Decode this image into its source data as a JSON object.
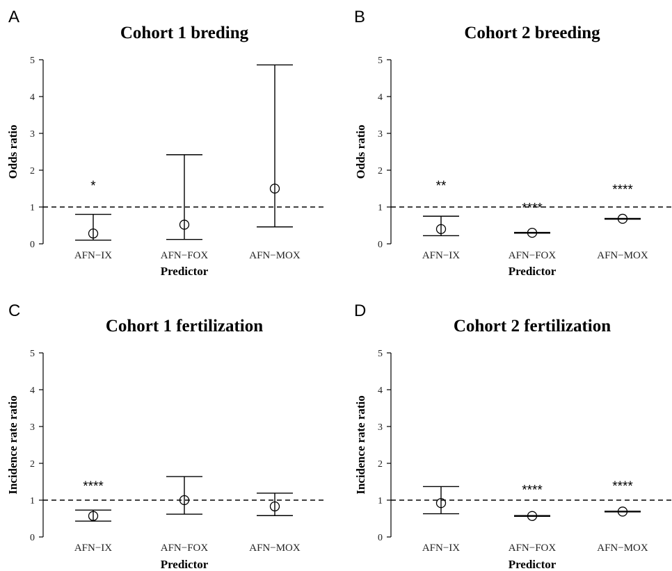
{
  "chart_data": [
    {
      "panel": "A",
      "type": "scatter",
      "title": "Cohort 1 breding",
      "xlabel": "Predictor",
      "ylabel": "Odds ratio",
      "ylim": [
        0,
        5
      ],
      "yticks": [
        "0",
        "1",
        "2",
        "3",
        "4",
        "5"
      ],
      "reference_line": 1,
      "categories": [
        "AFN−IX",
        "AFN−FOX",
        "AFN−MOX"
      ],
      "values": [
        0.28,
        0.52,
        1.5
      ],
      "lower": [
        0.1,
        0.12,
        0.46
      ],
      "upper": [
        0.8,
        2.42,
        4.86
      ],
      "significance": [
        "*",
        "",
        ""
      ],
      "sig_y": [
        1.65,
        0,
        0
      ]
    },
    {
      "panel": "B",
      "type": "scatter",
      "title": "Cohort 2 breeding",
      "xlabel": "Predictor",
      "ylabel": "Odds ratio",
      "ylim": [
        0,
        5
      ],
      "yticks": [
        "0",
        "1",
        "2",
        "3",
        "4",
        "5"
      ],
      "reference_line": 1,
      "categories": [
        "AFN−IX",
        "AFN−FOX",
        "AFN−MOX"
      ],
      "values": [
        0.4,
        0.3,
        0.68
      ],
      "lower": [
        0.22,
        0.29,
        0.67
      ],
      "upper": [
        0.75,
        0.31,
        0.69
      ],
      "significance": [
        "**",
        "****",
        "****"
      ],
      "sig_y": [
        1.65,
        1.05,
        1.55
      ]
    },
    {
      "panel": "C",
      "type": "scatter",
      "title": "Cohort 1 fertilization",
      "xlabel": "Predictor",
      "ylabel": "Incidence rate ratio",
      "ylim": [
        0,
        5
      ],
      "yticks": [
        "0",
        "1",
        "2",
        "3",
        "4",
        "5"
      ],
      "reference_line": 1,
      "categories": [
        "AFN−IX",
        "AFN−FOX",
        "AFN−MOX"
      ],
      "values": [
        0.57,
        1.0,
        0.83
      ],
      "lower": [
        0.43,
        0.62,
        0.58
      ],
      "upper": [
        0.73,
        1.64,
        1.19
      ],
      "significance": [
        "****",
        "",
        ""
      ],
      "sig_y": [
        1.45,
        0,
        0
      ]
    },
    {
      "panel": "D",
      "type": "scatter",
      "title": "Cohort 2 fertilization",
      "xlabel": "Predictor",
      "ylabel": "Incidence rate ratio",
      "ylim": [
        0,
        5
      ],
      "yticks": [
        "0",
        "1",
        "2",
        "3",
        "4",
        "5"
      ],
      "reference_line": 1,
      "categories": [
        "AFN−IX",
        "AFN−FOX",
        "AFN−MOX"
      ],
      "values": [
        0.92,
        0.57,
        0.69
      ],
      "lower": [
        0.63,
        0.56,
        0.68
      ],
      "upper": [
        1.37,
        0.58,
        0.7
      ],
      "significance": [
        "",
        "****",
        "****"
      ],
      "sig_y": [
        0,
        1.35,
        1.45
      ]
    }
  ]
}
